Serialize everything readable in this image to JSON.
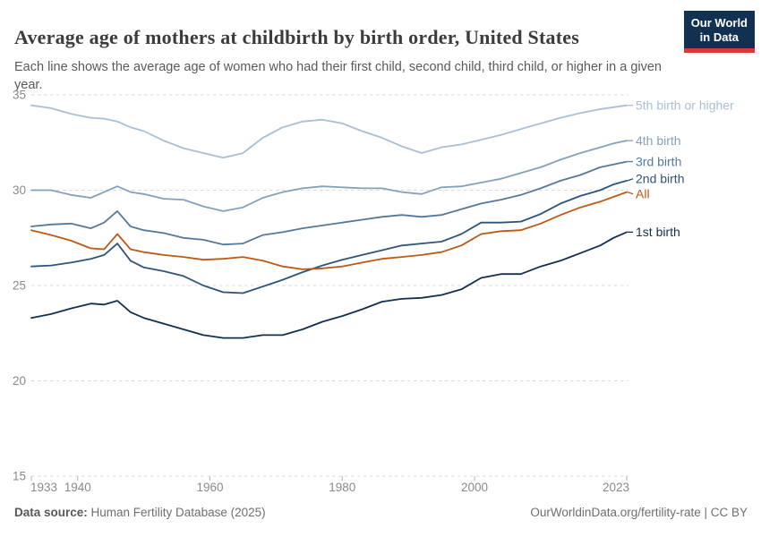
{
  "header": {
    "logo": {
      "line1": "Our World",
      "line2": "in Data"
    }
  },
  "chart_data": {
    "type": "line",
    "title": "Average age of mothers at childbirth by birth order, United States",
    "subtitle": "Each line shows the average age of women who had their first child, second child, third child, or higher in a given year.",
    "xlabel": "",
    "ylabel": "",
    "xlim": [
      1933,
      2023
    ],
    "ylim": [
      15,
      35
    ],
    "x_ticks": [
      1933,
      1940,
      1960,
      1980,
      2000,
      2023
    ],
    "y_ticks": [
      15,
      20,
      25,
      30,
      35
    ],
    "grid": "horizontal-dashed",
    "legend_position": "right-end-labels",
    "axis_text_color": "#8a8a8a",
    "grid_color": "#d9d9d9",
    "x": [
      1933,
      1936,
      1939,
      1942,
      1944,
      1946,
      1948,
      1950,
      1953,
      1956,
      1959,
      1962,
      1965,
      1968,
      1971,
      1974,
      1977,
      1980,
      1983,
      1986,
      1989,
      1992,
      1995,
      1998,
      2001,
      2004,
      2007,
      2010,
      2013,
      2016,
      2019,
      2021,
      2023
    ],
    "series": [
      {
        "name": "5th birth or higher",
        "slug": "5th-birth-or-higher",
        "color": "#a9bfd5",
        "values": [
          34.45,
          34.3,
          34.0,
          33.8,
          33.75,
          33.6,
          33.3,
          33.1,
          32.6,
          32.2,
          31.95,
          31.7,
          31.95,
          32.75,
          33.3,
          33.6,
          33.7,
          33.5,
          33.1,
          32.75,
          32.3,
          31.95,
          32.25,
          32.4,
          32.65,
          32.9,
          33.2,
          33.5,
          33.8,
          34.05,
          34.25,
          34.35,
          34.45
        ]
      },
      {
        "name": "4th birth",
        "slug": "4th-birth",
        "color": "#85a0ba",
        "values": [
          30.0,
          30.0,
          29.75,
          29.6,
          29.9,
          30.2,
          29.9,
          29.8,
          29.55,
          29.5,
          29.15,
          28.9,
          29.1,
          29.6,
          29.9,
          30.1,
          30.2,
          30.15,
          30.1,
          30.1,
          29.9,
          29.8,
          30.15,
          30.2,
          30.4,
          30.6,
          30.9,
          31.2,
          31.6,
          31.95,
          32.25,
          32.45,
          32.6
        ]
      },
      {
        "name": "3rd birth",
        "slug": "3rd-birth",
        "color": "#56789c",
        "values": [
          28.1,
          28.2,
          28.25,
          28.0,
          28.3,
          28.9,
          28.1,
          27.9,
          27.75,
          27.5,
          27.4,
          27.15,
          27.2,
          27.65,
          27.8,
          28.0,
          28.15,
          28.3,
          28.45,
          28.6,
          28.7,
          28.6,
          28.7,
          29.0,
          29.3,
          29.5,
          29.75,
          30.1,
          30.5,
          30.8,
          31.2,
          31.35,
          31.5
        ]
      },
      {
        "name": "2nd birth",
        "slug": "2nd-birth",
        "color": "#2f547a",
        "values": [
          26.0,
          26.05,
          26.2,
          26.4,
          26.6,
          27.2,
          26.3,
          25.95,
          25.75,
          25.5,
          25.0,
          24.65,
          24.6,
          24.95,
          25.3,
          25.7,
          26.05,
          26.35,
          26.6,
          26.85,
          27.1,
          27.2,
          27.3,
          27.7,
          28.3,
          28.3,
          28.35,
          28.75,
          29.3,
          29.7,
          30.0,
          30.3,
          30.5
        ]
      },
      {
        "name": "All",
        "slug": "all",
        "color": "#be5915",
        "values": [
          27.9,
          27.65,
          27.35,
          26.95,
          26.9,
          27.7,
          26.9,
          26.75,
          26.6,
          26.5,
          26.35,
          26.4,
          26.5,
          26.3,
          26.0,
          25.85,
          25.9,
          26.0,
          26.2,
          26.4,
          26.5,
          26.6,
          26.75,
          27.1,
          27.7,
          27.85,
          27.9,
          28.25,
          28.7,
          29.1,
          29.4,
          29.65,
          29.9
        ]
      },
      {
        "name": "1st birth",
        "slug": "1st-birth",
        "color": "#12304f",
        "values": [
          23.3,
          23.5,
          23.8,
          24.05,
          24.0,
          24.2,
          23.6,
          23.3,
          23.0,
          22.7,
          22.4,
          22.25,
          22.25,
          22.4,
          22.4,
          22.7,
          23.1,
          23.4,
          23.75,
          24.15,
          24.3,
          24.35,
          24.5,
          24.8,
          25.4,
          25.6,
          25.6,
          26.0,
          26.3,
          26.7,
          27.1,
          27.5,
          27.8
        ]
      }
    ]
  },
  "footer": {
    "source_label": "Data source:",
    "source_value": " Human Fertility Database (2025)",
    "credit": "OurWorldinData.org/fertility-rate | CC BY"
  }
}
